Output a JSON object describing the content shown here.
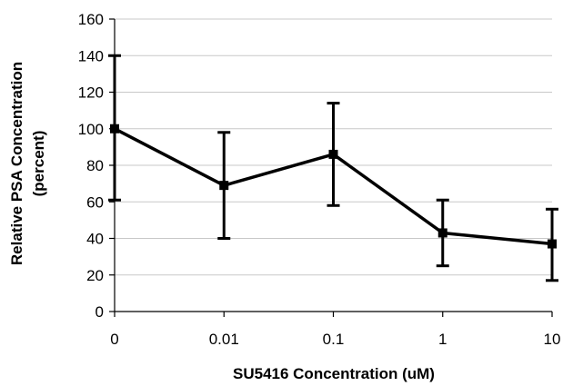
{
  "chart_data": {
    "type": "line",
    "title": "",
    "xlabel": "SU5416 Concentration (uM)",
    "ylabel": [
      "Relative PSA Concentration",
      "(percent)"
    ],
    "categories": [
      "0",
      "0.01",
      "0.1",
      "1",
      "10"
    ],
    "ylim": [
      0,
      160
    ],
    "yticks": [
      0,
      20,
      40,
      60,
      80,
      100,
      120,
      140,
      160
    ],
    "grid": true,
    "legend": "none",
    "series": [
      {
        "values": [
          100,
          69,
          86,
          43,
          37
        ],
        "error_low": [
          61,
          40,
          58,
          25,
          17
        ],
        "error_high": [
          140,
          98,
          114,
          61,
          56
        ],
        "color": "#000000",
        "marker": "square"
      }
    ]
  }
}
